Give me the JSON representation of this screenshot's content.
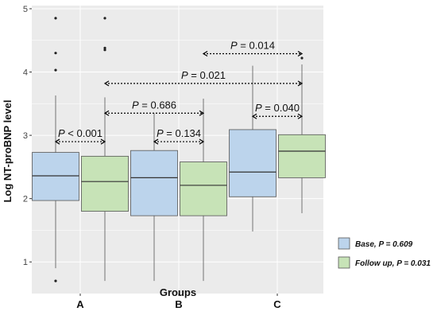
{
  "chart_data": {
    "type": "boxplot",
    "xlabel": "Groups",
    "ylabel": "Log NT-proBNP level",
    "ylim": [
      0.5,
      5.05
    ],
    "y_ticks": [
      1,
      2,
      3,
      4,
      5
    ],
    "categories": [
      "A",
      "B",
      "C"
    ],
    "grid": true,
    "legend_placement": "right",
    "series": [
      {
        "name": "Base, P = 0.609",
        "color": "#bcd4ec",
        "boxes": [
          {
            "category": "A",
            "whisker_low": 0.9,
            "q1": 1.97,
            "median": 2.36,
            "q3": 2.73,
            "whisker_high": 3.63,
            "outliers": [
              0.7,
              4.03,
              4.3,
              4.85
            ]
          },
          {
            "category": "B",
            "whisker_low": 0.7,
            "q1": 1.73,
            "median": 2.33,
            "q3": 2.76,
            "whisker_high": 3.35,
            "outliers": []
          },
          {
            "category": "C",
            "whisker_low": 1.48,
            "q1": 2.03,
            "median": 2.42,
            "q3": 3.09,
            "whisker_high": 4.1,
            "outliers": []
          }
        ]
      },
      {
        "name": "Follow up, P = 0.031",
        "color": "#c7e3b7",
        "boxes": [
          {
            "category": "A",
            "whisker_low": 0.7,
            "q1": 1.8,
            "median": 2.27,
            "q3": 2.67,
            "whisker_high": 3.6,
            "outliers": [
              4.35,
              4.38,
              4.85
            ]
          },
          {
            "category": "B",
            "whisker_low": 0.7,
            "q1": 1.73,
            "median": 2.21,
            "q3": 2.58,
            "whisker_high": 3.58,
            "outliers": []
          },
          {
            "category": "C",
            "whisker_low": 1.77,
            "q1": 2.33,
            "median": 2.75,
            "q3": 3.01,
            "whisker_high": 4.12,
            "outliers": [
              4.22
            ]
          }
        ]
      }
    ],
    "annotations": [
      {
        "label": "P < 0.001",
        "p_prefix": "P",
        "p_rest": " < 0.001",
        "from": {
          "category": "A",
          "series": 0
        },
        "to": {
          "category": "A",
          "series": 1
        },
        "y": 2.9
      },
      {
        "label": "P = 0.686",
        "p_prefix": "P",
        "p_rest": " = 0.686",
        "from": {
          "category": "A",
          "series": 1
        },
        "to": {
          "category": "B",
          "series": 1
        },
        "y": 3.35
      },
      {
        "label": "P = 0.134",
        "p_prefix": "P",
        "p_rest": " = 0.134",
        "from": {
          "category": "B",
          "series": 0
        },
        "to": {
          "category": "B",
          "series": 1
        },
        "y": 2.9
      },
      {
        "label": "P = 0.040",
        "p_prefix": "P",
        "p_rest": " = 0.040",
        "from": {
          "category": "C",
          "series": 0
        },
        "to": {
          "category": "C",
          "series": 1
        },
        "y": 3.3
      },
      {
        "label": "P = 0.021",
        "p_prefix": "P",
        "p_rest": " = 0.021",
        "from": {
          "category": "A",
          "series": 1
        },
        "to": {
          "category": "C",
          "series": 1
        },
        "y": 3.82
      },
      {
        "label": "P = 0.014",
        "p_prefix": "P",
        "p_rest": " = 0.014",
        "from": {
          "category": "B",
          "series": 1
        },
        "to": {
          "category": "C",
          "series": 1
        },
        "y": 4.29
      }
    ],
    "legend": [
      {
        "name_prefix": "Base,",
        "p_prefix": "P",
        "p_rest": " = 0.609"
      },
      {
        "name_prefix": "Follow up,",
        "p_prefix": "P",
        "p_rest": " = 0.031"
      }
    ],
    "colors": {
      "panel": "#ebebeb",
      "grid": "#ffffff",
      "box_stroke": "#555555",
      "bracket": "#000000"
    }
  }
}
